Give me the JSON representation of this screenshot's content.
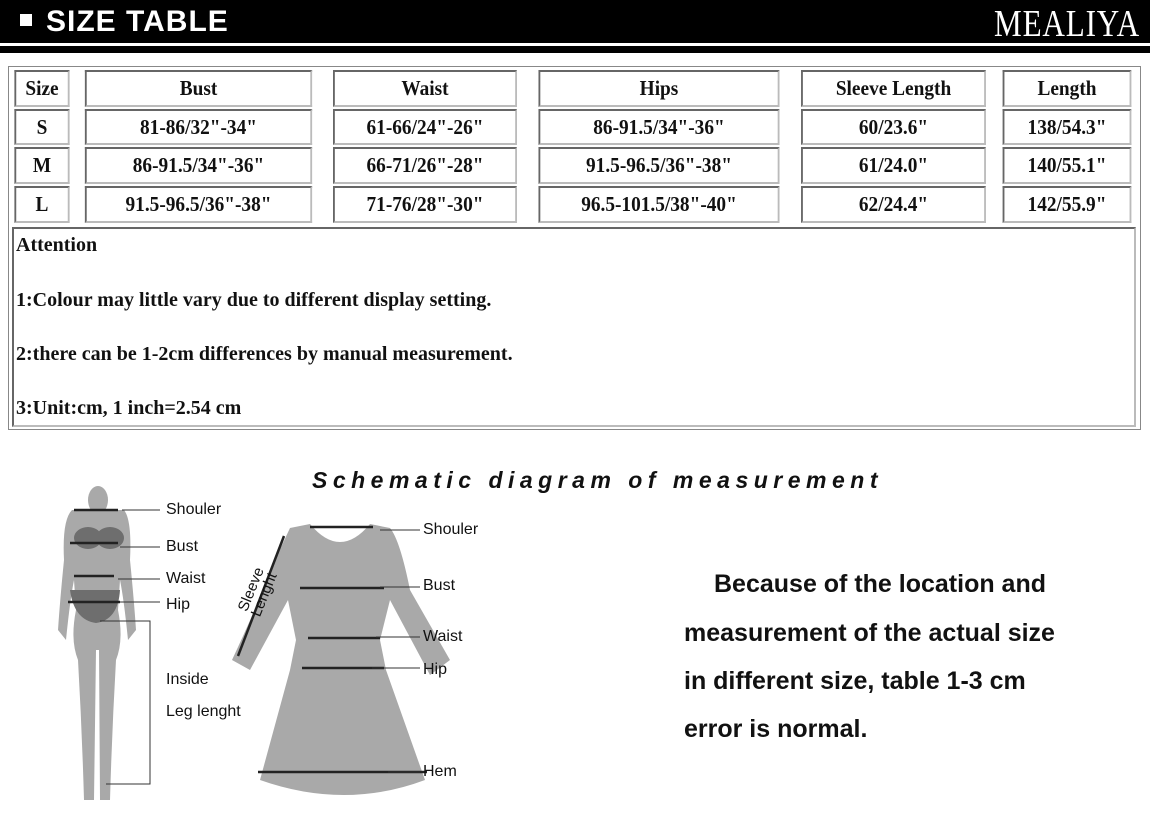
{
  "header": {
    "title": "SIZE TABLE",
    "brand": "MEALIYA"
  },
  "table": {
    "columns": [
      "Size",
      "Bust",
      "Waist",
      "Hips",
      "Sleeve Length",
      "Length"
    ],
    "rows": [
      [
        "S",
        "81-86/32\"-34\"",
        "61-66/24\"-26\"",
        "86-91.5/34\"-36\"",
        "60/23.6\"",
        "138/54.3\""
      ],
      [
        "M",
        "86-91.5/34\"-36\"",
        "66-71/26\"-28\"",
        "91.5-96.5/36\"-38\"",
        "61/24.0\"",
        "140/55.1\""
      ],
      [
        "L",
        "91.5-96.5/36\"-38\"",
        "71-76/28\"-30\"",
        "96.5-101.5/38\"-40\"",
        "62/24.4\"",
        "142/55.9\""
      ]
    ]
  },
  "attention": {
    "title": "Attention",
    "items": [
      "1:Colour may little vary due to different display setting.",
      "2:there can be 1-2cm differences by manual measurement.",
      "3:Unit:cm, 1 inch=2.54 cm"
    ]
  },
  "diagram": {
    "title": "Schematic diagram of measurement",
    "body_labels": [
      "Shouler",
      "Bust",
      "Waist",
      "Hip",
      "Inside",
      "Leg lenght"
    ],
    "dress_labels": [
      "Shouler",
      "Bust",
      "Waist",
      "Hip",
      "Hem"
    ],
    "sleeve_label_1": "Sleeve",
    "sleeve_label_2": "Lenght"
  },
  "note": {
    "lines": [
      "Because of the location and",
      "measurement of the actual size",
      "in different size, table 1-3 cm",
      "error is normal."
    ]
  }
}
